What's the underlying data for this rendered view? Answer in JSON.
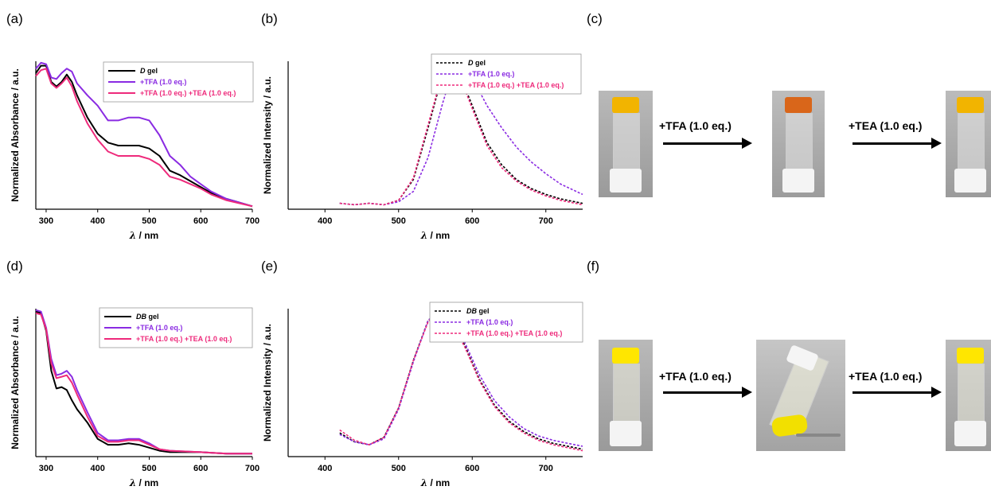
{
  "panels": {
    "a": "(a)",
    "b": "(b)",
    "c": "(c)",
    "d": "(d)",
    "e": "(e)",
    "f": "(f)"
  },
  "photo_rows": {
    "c": {
      "arrow1": "+TFA (1.0 eq.)",
      "arrow2": "+TEA (1.0 eq.)"
    },
    "f": {
      "arrow1": "+TFA (1.0 eq.)",
      "arrow2": "+TEA (1.0 eq.)"
    }
  },
  "colors": {
    "black": "#000000",
    "purple": "#8a2be2",
    "pink": "#ee2a7b"
  },
  "chart_data": [
    {
      "id": "a",
      "type": "line",
      "xlabel_sym": "λ",
      "xlabel_unit": " / nm",
      "ylabel": "Normalized Absorbance / a.u.",
      "xlim": [
        280,
        700
      ],
      "ylim": [
        0,
        1
      ],
      "xticks": [
        300,
        400,
        500,
        600,
        700
      ],
      "dashed": false,
      "legend": "top-right",
      "series": [
        {
          "name": "D gel",
          "name_italic": "D",
          "name_rest": " gel",
          "color": "#000000",
          "x": [
            280,
            290,
            300,
            310,
            320,
            330,
            340,
            350,
            360,
            380,
            400,
            420,
            440,
            460,
            480,
            500,
            520,
            540,
            560,
            580,
            600,
            620,
            650,
            700
          ],
          "y": [
            0.92,
            0.97,
            0.97,
            0.86,
            0.83,
            0.86,
            0.91,
            0.86,
            0.77,
            0.62,
            0.51,
            0.45,
            0.43,
            0.43,
            0.43,
            0.41,
            0.36,
            0.26,
            0.23,
            0.19,
            0.15,
            0.11,
            0.07,
            0.02
          ]
        },
        {
          "name": "+TFA (1.0 eq.)",
          "color": "#8a2be2",
          "x": [
            280,
            290,
            300,
            310,
            320,
            330,
            340,
            350,
            360,
            380,
            400,
            420,
            440,
            460,
            480,
            500,
            520,
            540,
            560,
            580,
            600,
            620,
            650,
            700
          ],
          "y": [
            0.95,
            0.99,
            0.98,
            0.89,
            0.88,
            0.92,
            0.95,
            0.93,
            0.85,
            0.77,
            0.7,
            0.6,
            0.6,
            0.62,
            0.62,
            0.6,
            0.5,
            0.36,
            0.3,
            0.22,
            0.17,
            0.12,
            0.07,
            0.02
          ]
        },
        {
          "name": "+TFA (1.0 eq.) +TEA (1.0 eq.)",
          "color": "#ee2a7b",
          "x": [
            280,
            290,
            300,
            310,
            320,
            330,
            340,
            350,
            360,
            380,
            400,
            420,
            440,
            460,
            480,
            500,
            520,
            540,
            560,
            580,
            600,
            620,
            650,
            700
          ],
          "y": [
            0.9,
            0.94,
            0.95,
            0.85,
            0.82,
            0.85,
            0.89,
            0.83,
            0.73,
            0.58,
            0.47,
            0.39,
            0.36,
            0.36,
            0.36,
            0.34,
            0.3,
            0.22,
            0.2,
            0.17,
            0.14,
            0.1,
            0.06,
            0.02
          ]
        }
      ]
    },
    {
      "id": "b",
      "type": "line",
      "xlabel_sym": "λ",
      "xlabel_unit": " / nm",
      "ylabel": "Normalized Intensity / a.u.",
      "xlim": [
        350,
        750
      ],
      "ylim": [
        0,
        1
      ],
      "xticks": [
        400,
        500,
        600,
        700
      ],
      "dashed": true,
      "legend": "top-right",
      "series": [
        {
          "name": "D gel",
          "name_italic": "D",
          "name_rest": " gel",
          "color": "#000000",
          "x": [
            420,
            440,
            460,
            480,
            500,
            520,
            540,
            560,
            570,
            580,
            600,
            620,
            640,
            660,
            680,
            700,
            720,
            750
          ],
          "y": [
            0.04,
            0.03,
            0.04,
            0.03,
            0.06,
            0.2,
            0.55,
            0.92,
            0.99,
            0.95,
            0.7,
            0.45,
            0.3,
            0.2,
            0.14,
            0.1,
            0.07,
            0.04
          ]
        },
        {
          "name": "+TFA (1.0 eq.)",
          "color": "#8a2be2",
          "x": [
            420,
            440,
            460,
            480,
            500,
            520,
            540,
            560,
            570,
            580,
            600,
            620,
            640,
            660,
            680,
            700,
            720,
            750
          ],
          "y": [
            0.04,
            0.03,
            0.04,
            0.03,
            0.05,
            0.12,
            0.35,
            0.72,
            0.88,
            0.99,
            0.89,
            0.7,
            0.55,
            0.42,
            0.32,
            0.24,
            0.17,
            0.1
          ]
        },
        {
          "name": "+TFA (1.0 eq.) +TEA (1.0 eq.)",
          "color": "#ee2a7b",
          "x": [
            420,
            440,
            460,
            480,
            500,
            520,
            540,
            560,
            570,
            580,
            600,
            620,
            640,
            660,
            680,
            700,
            720,
            750
          ],
          "y": [
            0.04,
            0.03,
            0.04,
            0.03,
            0.06,
            0.21,
            0.57,
            0.93,
            0.99,
            0.94,
            0.68,
            0.43,
            0.28,
            0.19,
            0.13,
            0.09,
            0.06,
            0.03
          ]
        }
      ]
    },
    {
      "id": "d",
      "type": "line",
      "xlabel_sym": "λ",
      "xlabel_unit": " / nm",
      "ylabel": "Normalized Absorbance / a.u.",
      "xlim": [
        280,
        700
      ],
      "ylim": [
        0,
        1
      ],
      "xticks": [
        300,
        400,
        500,
        600,
        700
      ],
      "dashed": false,
      "legend": "top-right",
      "series": [
        {
          "name": "DB gel",
          "name_italic": "DB",
          "name_rest": " gel",
          "color": "#000000",
          "x": [
            280,
            290,
            300,
            310,
            320,
            330,
            340,
            350,
            360,
            380,
            400,
            420,
            440,
            460,
            480,
            500,
            520,
            540,
            600,
            650,
            700
          ],
          "y": [
            0.98,
            0.97,
            0.85,
            0.58,
            0.46,
            0.47,
            0.45,
            0.38,
            0.32,
            0.23,
            0.12,
            0.08,
            0.08,
            0.09,
            0.08,
            0.06,
            0.04,
            0.03,
            0.03,
            0.02,
            0.02
          ]
        },
        {
          "name": "+TFA (1.0 eq.)",
          "color": "#8a2be2",
          "x": [
            280,
            290,
            300,
            310,
            320,
            330,
            340,
            350,
            360,
            380,
            400,
            420,
            440,
            460,
            480,
            500,
            520,
            540,
            600,
            650,
            700
          ],
          "y": [
            0.99,
            0.98,
            0.87,
            0.66,
            0.55,
            0.56,
            0.58,
            0.54,
            0.45,
            0.3,
            0.16,
            0.11,
            0.11,
            0.12,
            0.12,
            0.09,
            0.05,
            0.04,
            0.03,
            0.02,
            0.02
          ]
        },
        {
          "name": "+TFA (1.0 eq.) +TEA (1.0 eq.)",
          "color": "#ee2a7b",
          "x": [
            280,
            290,
            300,
            310,
            320,
            330,
            340,
            350,
            360,
            380,
            400,
            420,
            440,
            460,
            480,
            500,
            520,
            540,
            600,
            650,
            700
          ],
          "y": [
            0.97,
            0.96,
            0.86,
            0.63,
            0.53,
            0.54,
            0.55,
            0.5,
            0.42,
            0.27,
            0.14,
            0.1,
            0.1,
            0.11,
            0.11,
            0.08,
            0.05,
            0.04,
            0.03,
            0.02,
            0.02
          ]
        }
      ]
    },
    {
      "id": "e",
      "type": "line",
      "xlabel_sym": "λ",
      "xlabel_unit": " / nm",
      "ylabel": "Normalized Intensity / a.u.",
      "xlim": [
        350,
        750
      ],
      "ylim": [
        0,
        1
      ],
      "xticks": [
        400,
        500,
        600,
        700
      ],
      "dashed": true,
      "legend": "top-right",
      "series": [
        {
          "name": "DB gel",
          "name_italic": "DB",
          "name_rest": " gel",
          "color": "#000000",
          "x": [
            420,
            440,
            460,
            480,
            500,
            520,
            540,
            555,
            570,
            590,
            610,
            630,
            650,
            670,
            690,
            710,
            730,
            750
          ],
          "y": [
            0.16,
            0.1,
            0.08,
            0.13,
            0.33,
            0.65,
            0.92,
            0.99,
            0.94,
            0.75,
            0.52,
            0.35,
            0.24,
            0.17,
            0.12,
            0.09,
            0.07,
            0.05
          ]
        },
        {
          "name": "+TFA (1.0 eq.)",
          "color": "#8a2be2",
          "x": [
            420,
            440,
            460,
            480,
            500,
            520,
            540,
            555,
            570,
            590,
            610,
            630,
            650,
            670,
            690,
            710,
            730,
            750
          ],
          "y": [
            0.15,
            0.1,
            0.08,
            0.12,
            0.32,
            0.64,
            0.92,
            0.99,
            0.95,
            0.77,
            0.55,
            0.38,
            0.27,
            0.19,
            0.14,
            0.11,
            0.09,
            0.07
          ]
        },
        {
          "name": "+TFA (1.0 eq.) +TEA (1.0 eq.)",
          "color": "#ee2a7b",
          "x": [
            420,
            440,
            460,
            480,
            500,
            520,
            540,
            555,
            570,
            590,
            610,
            630,
            650,
            670,
            690,
            710,
            730,
            750
          ],
          "y": [
            0.18,
            0.11,
            0.08,
            0.13,
            0.33,
            0.65,
            0.91,
            0.99,
            0.93,
            0.74,
            0.51,
            0.34,
            0.23,
            0.16,
            0.11,
            0.08,
            0.06,
            0.04
          ]
        }
      ]
    }
  ]
}
